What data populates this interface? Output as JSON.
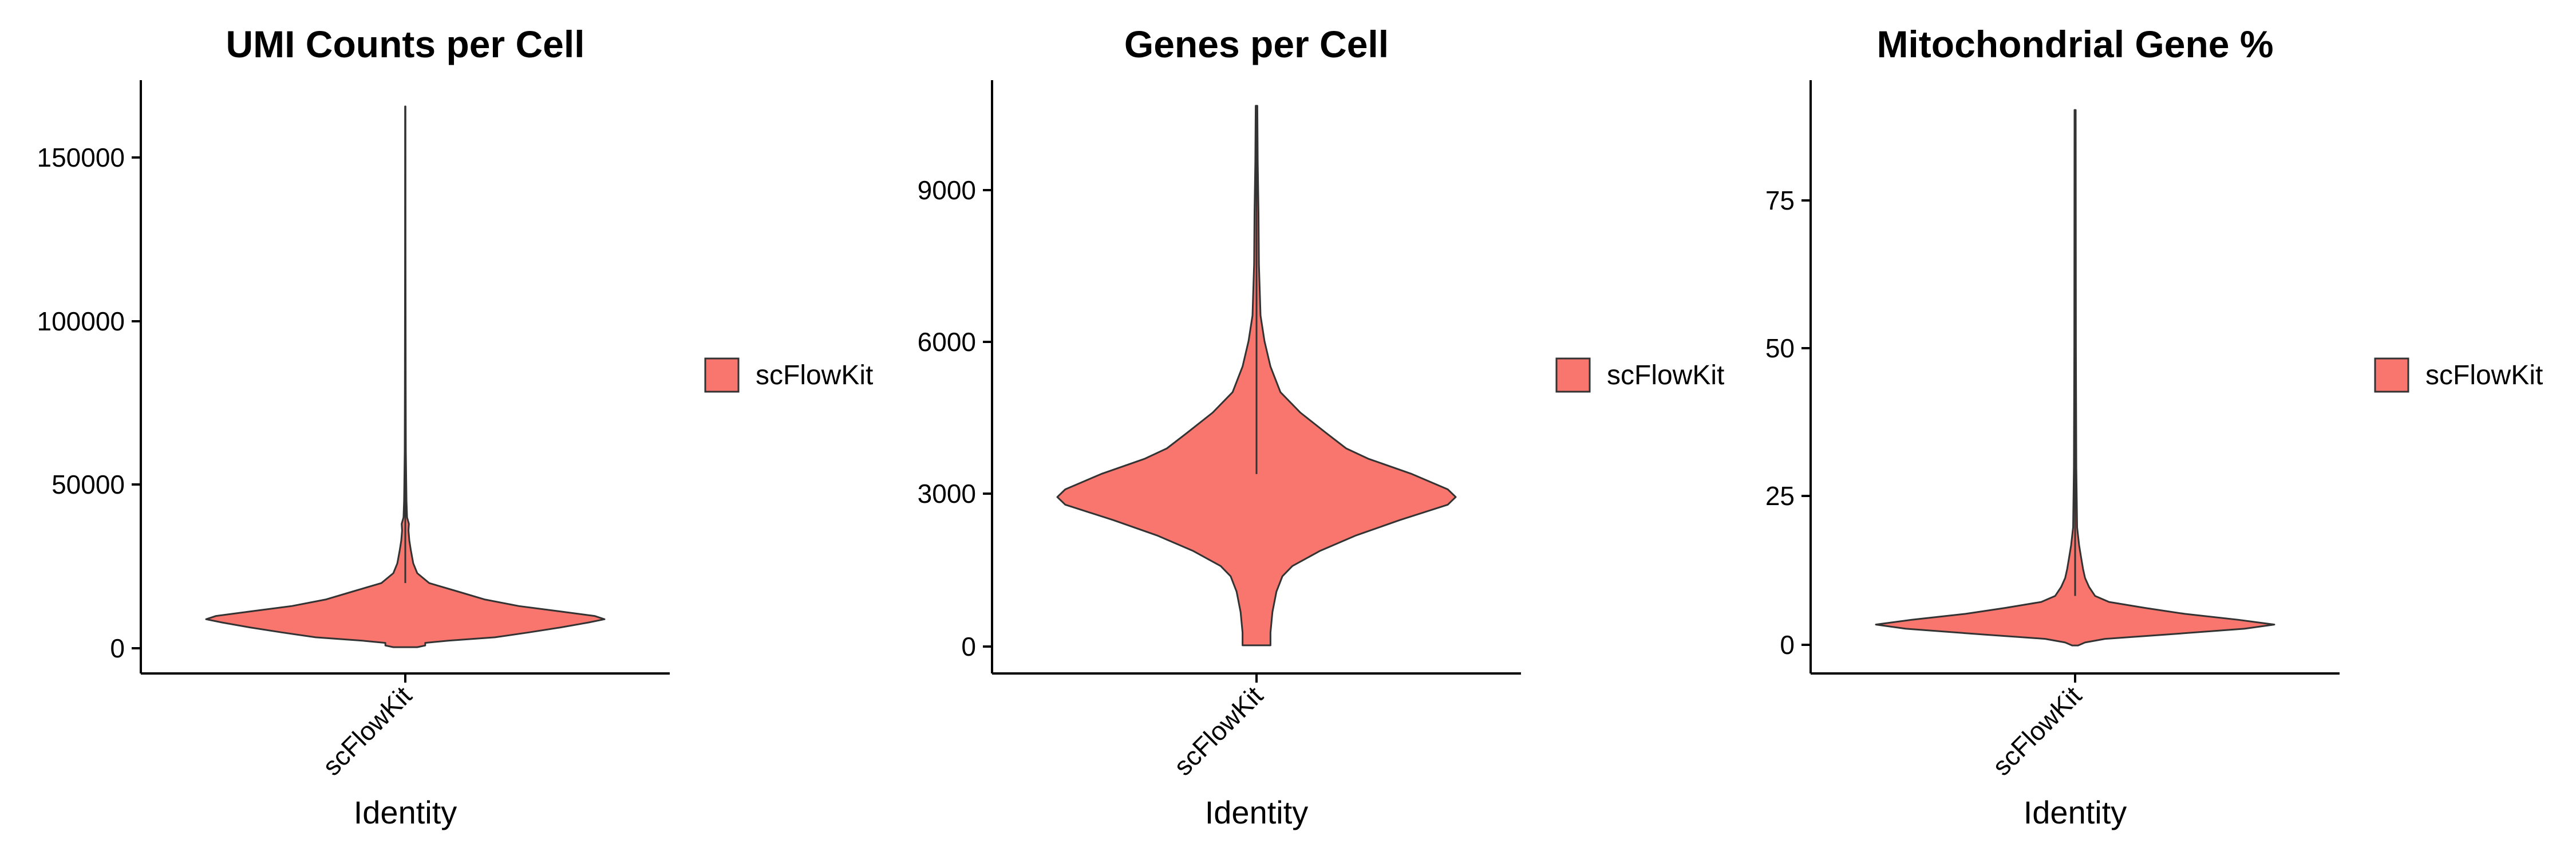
{
  "fill_color": "#F8766D",
  "outline_color": "#333333",
  "chart_data": [
    {
      "type": "violin",
      "title": "UMI Counts per Cell",
      "xlabel": "Identity",
      "ylabel": "",
      "categories": [
        "scFlowKit"
      ],
      "yticks": [
        0,
        50000,
        100000,
        150000
      ],
      "ylim": [
        -7500,
        173000
      ],
      "grid": false,
      "legend": {
        "position": "right",
        "entries": [
          "scFlowKit"
        ]
      },
      "series": [
        {
          "name": "scFlowKit",
          "min": 500,
          "max": 165000,
          "density": [
            [
              500,
              0.06
            ],
            [
              1000,
              0.1
            ],
            [
              1800,
              0.1
            ],
            [
              2500,
              0.22
            ],
            [
              3500,
              0.45
            ],
            [
              5000,
              0.62
            ],
            [
              6500,
              0.78
            ],
            [
              8000,
              0.92
            ],
            [
              9000,
              1.0
            ],
            [
              10000,
              0.95
            ],
            [
              11500,
              0.76
            ],
            [
              13000,
              0.57
            ],
            [
              15000,
              0.4
            ],
            [
              17500,
              0.26
            ],
            [
              20000,
              0.12
            ],
            [
              23000,
              0.06
            ],
            [
              26000,
              0.04
            ],
            [
              30000,
              0.028
            ],
            [
              33000,
              0.02
            ],
            [
              36000,
              0.016
            ],
            [
              38000,
              0.018
            ],
            [
              40000,
              0.009
            ],
            [
              45000,
              0.006
            ],
            [
              50000,
              0.005
            ],
            [
              60000,
              0.003
            ],
            [
              80000,
              0.002
            ],
            [
              120000,
              0.0012
            ],
            [
              165000,
              0.001
            ]
          ]
        }
      ]
    },
    {
      "type": "violin",
      "title": "Genes per Cell",
      "xlabel": "Identity",
      "ylabel": "",
      "categories": [
        "scFlowKit"
      ],
      "yticks": [
        0,
        3000,
        6000,
        9000
      ],
      "ylim": [
        -500,
        11100
      ],
      "grid": false,
      "legend": {
        "position": "right",
        "entries": [
          "scFlowKit"
        ]
      },
      "series": [
        {
          "name": "scFlowKit",
          "min": 50,
          "max": 10600,
          "density": [
            [
              50,
              0.07
            ],
            [
              300,
              0.07
            ],
            [
              700,
              0.08
            ],
            [
              1100,
              0.1
            ],
            [
              1400,
              0.13
            ],
            [
              1600,
              0.18
            ],
            [
              1900,
              0.32
            ],
            [
              2200,
              0.5
            ],
            [
              2500,
              0.72
            ],
            [
              2800,
              0.96
            ],
            [
              2950,
              1.0
            ],
            [
              3100,
              0.96
            ],
            [
              3400,
              0.78
            ],
            [
              3700,
              0.56
            ],
            [
              3900,
              0.45
            ],
            [
              4200,
              0.35
            ],
            [
              4600,
              0.22
            ],
            [
              5000,
              0.12
            ],
            [
              5500,
              0.07
            ],
            [
              6000,
              0.04
            ],
            [
              6500,
              0.02
            ],
            [
              7500,
              0.012
            ],
            [
              8500,
              0.01
            ],
            [
              9500,
              0.006
            ],
            [
              10600,
              0.004
            ]
          ]
        }
      ]
    },
    {
      "type": "violin",
      "title": "Mitochondrial Gene %",
      "xlabel": "Identity",
      "ylabel": "",
      "categories": [
        "scFlowKit"
      ],
      "yticks": [
        0,
        25,
        50,
        75
      ],
      "ylim": [
        -4.5,
        95
      ],
      "grid": false,
      "legend": {
        "position": "right",
        "entries": [
          "scFlowKit"
        ]
      },
      "series": [
        {
          "name": "scFlowKit",
          "min": 0.2,
          "max": 90,
          "density": [
            [
              0.2,
              0.015
            ],
            [
              0.7,
              0.05
            ],
            [
              1.3,
              0.15
            ],
            [
              2.0,
              0.45
            ],
            [
              3.0,
              0.85
            ],
            [
              3.7,
              1.0
            ],
            [
              4.5,
              0.82
            ],
            [
              5.5,
              0.55
            ],
            [
              6.5,
              0.35
            ],
            [
              7.5,
              0.17
            ],
            [
              8.5,
              0.1
            ],
            [
              10.0,
              0.07
            ],
            [
              11.5,
              0.05
            ],
            [
              13.0,
              0.04
            ],
            [
              15.0,
              0.03
            ],
            [
              17.0,
              0.02
            ],
            [
              20.0,
              0.01
            ],
            [
              30.0,
              0.006
            ],
            [
              50.0,
              0.004
            ],
            [
              90.0,
              0.003
            ]
          ]
        }
      ]
    }
  ]
}
